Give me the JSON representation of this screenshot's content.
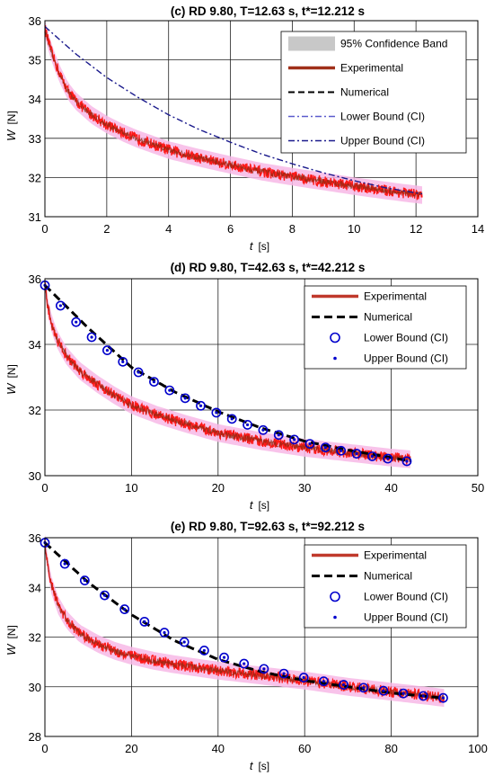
{
  "chart_data": [
    {
      "type": "line",
      "title": "(c) RD 9.80, T=12.63 s, t*=12.212 s",
      "xlabel": {
        "symbol": "t",
        "unit": "[s]"
      },
      "ylabel": {
        "symbol": "W",
        "unit": "[N]"
      },
      "xlim": [
        0,
        14
      ],
      "ylim": [
        31,
        36
      ],
      "xticks": [
        0,
        2,
        4,
        6,
        8,
        10,
        12,
        14
      ],
      "yticks": [
        31,
        32,
        33,
        34,
        35,
        36
      ],
      "grid": true,
      "legend_position": "top-right",
      "legend": [
        "95% Confidence Band",
        "Experimental",
        "Numerical",
        "Lower Bound (CI)",
        "Upper Bound (CI)"
      ],
      "series": [
        {
          "name": "Experimental",
          "role": "experimental",
          "color": "#ff1a1a",
          "x": [
            0,
            0.1,
            0.25,
            0.5,
            0.75,
            1,
            1.5,
            2,
            2.5,
            3,
            4,
            5,
            6,
            7,
            8,
            9,
            10,
            11,
            12.2
          ],
          "y": [
            35.8,
            35.5,
            35.1,
            34.6,
            34.2,
            33.95,
            33.6,
            33.35,
            33.15,
            32.98,
            32.7,
            32.5,
            32.32,
            32.15,
            32.02,
            31.9,
            31.78,
            31.67,
            31.55
          ]
        },
        {
          "name": "Numerical",
          "role": "numerical",
          "color": "#1a1a8c",
          "x": [
            0,
            1,
            2,
            3,
            4,
            5,
            6,
            7,
            8,
            9,
            10,
            11,
            12.2
          ],
          "y": [
            35.85,
            35.15,
            34.55,
            34.05,
            33.6,
            33.22,
            32.9,
            32.6,
            32.35,
            32.12,
            31.92,
            31.74,
            31.58
          ]
        }
      ]
    },
    {
      "type": "line",
      "title": "(d) RD 9.80, T=42.63 s, t*=42.212 s",
      "xlabel": {
        "symbol": "t",
        "unit": "[s]"
      },
      "ylabel": {
        "symbol": "W",
        "unit": "[N]"
      },
      "xlim": [
        0,
        50
      ],
      "ylim": [
        30,
        36
      ],
      "xticks": [
        0,
        10,
        20,
        30,
        40,
        50
      ],
      "yticks": [
        30,
        32,
        34,
        36
      ],
      "grid": true,
      "legend_position": "top-right",
      "legend": [
        "Experimental",
        "Numerical",
        "Lower Bound (CI)",
        "Upper Bound (CI)"
      ],
      "series": [
        {
          "name": "Experimental",
          "role": "experimental",
          "color": "#ff1a1a",
          "x": [
            0,
            0.3,
            0.8,
            1.5,
            2.5,
            4,
            6,
            8,
            10,
            13,
            16,
            20,
            25,
            30,
            35,
            40,
            42.2
          ],
          "y": [
            35.8,
            35.2,
            34.6,
            34.1,
            33.65,
            33.2,
            32.8,
            32.45,
            32.15,
            31.85,
            31.6,
            31.3,
            31.05,
            30.85,
            30.7,
            30.55,
            30.5
          ]
        },
        {
          "name": "Numerical",
          "role": "numerical",
          "color": "#000000",
          "x": [
            0,
            5,
            10,
            15,
            20,
            25,
            30,
            35,
            40,
            42.2
          ],
          "y": [
            35.8,
            34.5,
            33.3,
            32.55,
            31.95,
            31.45,
            31.05,
            30.78,
            30.55,
            30.45
          ]
        },
        {
          "name": "Lower Bound (CI)",
          "role": "marker-open",
          "color": "#0000cc",
          "x": [
            0,
            1.8,
            3.6,
            5.4,
            7.2,
            9.0,
            10.8,
            12.6,
            14.4,
            16.2,
            18.0,
            19.8,
            21.6,
            23.4,
            25.2,
            27.0,
            28.8,
            30.6,
            32.4,
            34.2,
            36.0,
            37.8,
            39.6,
            41.8
          ],
          "y": [
            35.8,
            35.18,
            34.68,
            34.22,
            33.82,
            33.47,
            33.15,
            32.86,
            32.6,
            32.36,
            32.13,
            31.92,
            31.73,
            31.55,
            31.39,
            31.24,
            31.1,
            30.97,
            30.86,
            30.76,
            30.67,
            30.59,
            30.52,
            30.44
          ]
        },
        {
          "name": "Upper Bound (CI)",
          "role": "marker-dot",
          "color": "#0000cc",
          "x": [
            0,
            1.8,
            3.6,
            5.4,
            7.2,
            9.0,
            10.8,
            12.6,
            14.4,
            16.2,
            18.0,
            19.8,
            21.6,
            23.4,
            25.2,
            27.0,
            28.8,
            30.6,
            32.4,
            34.2,
            36.0,
            37.8,
            39.6,
            41.8
          ],
          "y": [
            35.8,
            35.18,
            34.68,
            34.22,
            33.82,
            33.47,
            33.15,
            32.86,
            32.6,
            32.36,
            32.13,
            31.92,
            31.73,
            31.55,
            31.39,
            31.24,
            31.1,
            30.97,
            30.86,
            30.76,
            30.67,
            30.59,
            30.52,
            30.44
          ]
        }
      ]
    },
    {
      "type": "line",
      "title": "(e) RD 9.80, T=92.63 s, t*=92.212 s",
      "xlabel": {
        "symbol": "t",
        "unit": "[s]"
      },
      "ylabel": {
        "symbol": "W",
        "unit": "[N]"
      },
      "xlim": [
        0,
        100
      ],
      "ylim": [
        28,
        36
      ],
      "xticks": [
        0,
        20,
        40,
        60,
        80,
        100
      ],
      "yticks": [
        28,
        30,
        32,
        34,
        36
      ],
      "grid": true,
      "legend_position": "top-right",
      "legend": [
        "Experimental",
        "Numerical",
        "Lower Bound (CI)",
        "Upper Bound (CI)"
      ],
      "series": [
        {
          "name": "Experimental",
          "role": "experimental",
          "color": "#ff1a1a",
          "x": [
            0,
            0.5,
            1.5,
            3,
            5,
            8,
            12,
            16,
            20,
            25,
            30,
            40,
            50,
            60,
            70,
            80,
            90,
            92.2
          ],
          "y": [
            35.8,
            35.0,
            34.1,
            33.3,
            32.7,
            32.15,
            31.75,
            31.45,
            31.25,
            31.05,
            30.9,
            30.65,
            30.45,
            30.25,
            30.0,
            29.8,
            29.6,
            29.55
          ]
        },
        {
          "name": "Numerical",
          "role": "numerical",
          "color": "#000000",
          "x": [
            0,
            10,
            20,
            30,
            40,
            50,
            60,
            70,
            80,
            90,
            92.2
          ],
          "y": [
            35.8,
            34.2,
            32.9,
            31.85,
            31.1,
            30.6,
            30.25,
            30.0,
            29.75,
            29.58,
            29.55
          ]
        },
        {
          "name": "Lower Bound (CI)",
          "role": "marker-open",
          "color": "#0000cc",
          "x": [
            0,
            4.6,
            9.2,
            13.8,
            18.4,
            23.0,
            27.6,
            32.2,
            36.8,
            41.4,
            46.0,
            50.6,
            55.2,
            59.8,
            64.4,
            69.0,
            73.6,
            78.2,
            82.8,
            87.4,
            92.0
          ],
          "y": [
            35.8,
            34.95,
            34.28,
            33.68,
            33.12,
            32.62,
            32.18,
            31.8,
            31.46,
            31.18,
            30.93,
            30.72,
            30.53,
            30.37,
            30.22,
            30.08,
            29.96,
            29.84,
            29.73,
            29.63,
            29.55
          ]
        },
        {
          "name": "Upper Bound (CI)",
          "role": "marker-dot",
          "color": "#0000cc",
          "x": [
            0,
            4.6,
            9.2,
            13.8,
            18.4,
            23.0,
            27.6,
            32.2,
            36.8,
            41.4,
            46.0,
            50.6,
            55.2,
            59.8,
            64.4,
            69.0,
            73.6,
            78.2,
            82.8,
            87.4,
            92.0
          ],
          "y": [
            35.8,
            34.95,
            34.28,
            33.68,
            33.12,
            32.62,
            32.18,
            31.8,
            31.46,
            31.18,
            30.93,
            30.72,
            30.53,
            30.37,
            30.22,
            30.08,
            29.96,
            29.84,
            29.73,
            29.63,
            29.55
          ]
        }
      ]
    }
  ]
}
